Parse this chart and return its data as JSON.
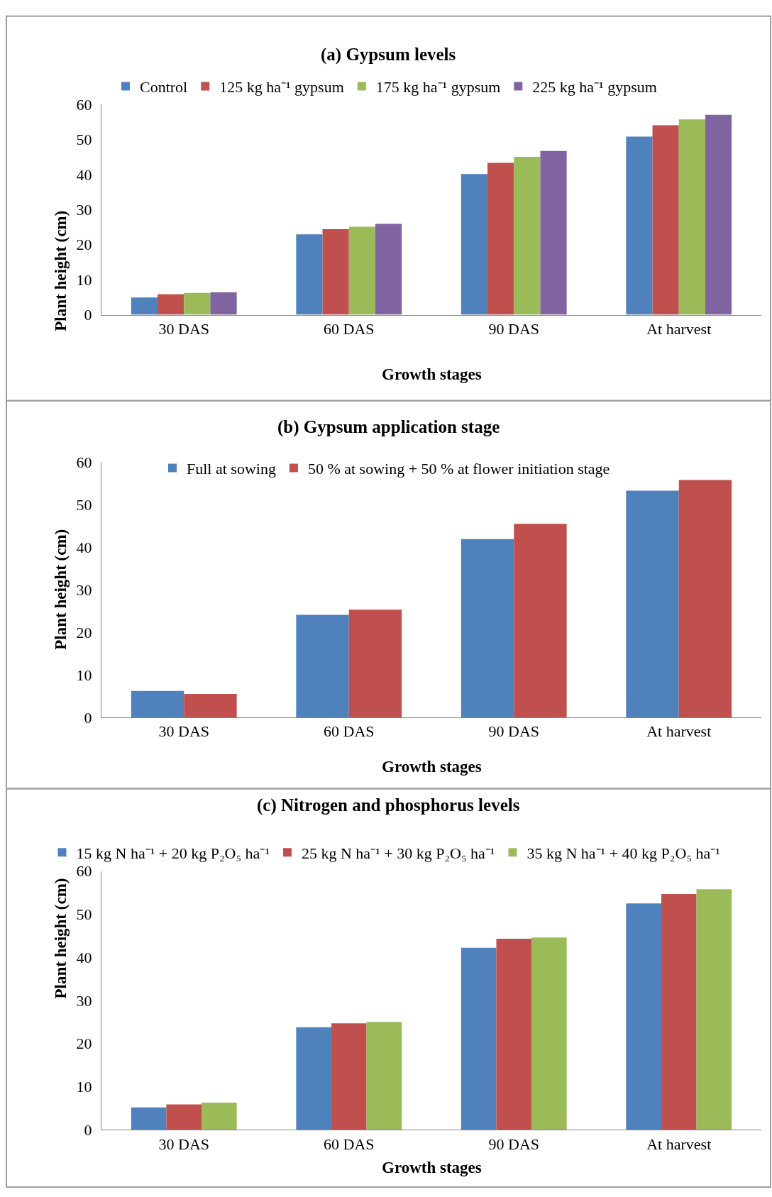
{
  "chart_data": [
    {
      "type": "bar",
      "title": "(a) Gypsum levels",
      "xlabel": "Growth stages",
      "ylabel": "Plant height (cm)",
      "categories": [
        "30 DAS",
        "60 DAS",
        "90 DAS",
        "At harvest"
      ],
      "series": [
        {
          "name": "Control",
          "color": "#4f81bd",
          "values": [
            4.9,
            22.9,
            40.1,
            50.8
          ]
        },
        {
          "name": "125 kg ha⁻¹ gypsum",
          "color": "#c0504d",
          "values": [
            5.8,
            24.4,
            43.3,
            54.0
          ]
        },
        {
          "name": "175 kg ha⁻¹ gypsum",
          "color": "#9bbb59",
          "values": [
            6.2,
            25.1,
            45.0,
            55.7
          ]
        },
        {
          "name": "225 kg ha⁻¹ gypsum",
          "color": "#8064a2",
          "values": [
            6.4,
            25.9,
            46.7,
            57.0
          ]
        }
      ],
      "ylim": [
        0,
        60
      ],
      "yticks": [
        0,
        10,
        20,
        30,
        40,
        50,
        60
      ],
      "grid": false,
      "legend": "top"
    },
    {
      "type": "bar",
      "title": "(b) Gypsum application stage",
      "xlabel": "Growth stages",
      "ylabel": "Plant height (cm)",
      "categories": [
        "30 DAS",
        "60 DAS",
        "90 DAS",
        "At harvest"
      ],
      "series": [
        {
          "name": "Full at sowing",
          "color": "#4f81bd",
          "values": [
            6.2,
            24.1,
            41.9,
            53.3
          ]
        },
        {
          "name": "50 % at sowing + 50 % at flower initiation stage",
          "color": "#c0504d",
          "values": [
            5.5,
            25.3,
            45.5,
            55.8
          ]
        }
      ],
      "ylim": [
        0,
        60
      ],
      "yticks": [
        0,
        10,
        20,
        30,
        40,
        50,
        60
      ],
      "grid": false,
      "legend": "top"
    },
    {
      "type": "bar",
      "title": "(c) Nitrogen and phosphorus levels",
      "xlabel": "Growth stages",
      "ylabel": "Plant height (cm)",
      "categories": [
        "30 DAS",
        "60 DAS",
        "90 DAS",
        "At harvest"
      ],
      "series": [
        {
          "name": "15 kg N ha⁻¹ + 20 kg P₂O₅ ha⁻¹",
          "color": "#4f81bd",
          "values": [
            5.2,
            23.8,
            42.2,
            52.5
          ]
        },
        {
          "name": "25 kg N ha⁻¹ + 30 kg P₂O₅ ha⁻¹",
          "color": "#c0504d",
          "values": [
            5.9,
            24.7,
            44.3,
            54.7
          ]
        },
        {
          "name": "35 kg N ha⁻¹ + 40 kg P₂O₅ ha⁻¹",
          "color": "#9bbb59",
          "values": [
            6.3,
            25.0,
            44.6,
            55.8
          ]
        }
      ],
      "ylim": [
        0,
        60
      ],
      "yticks": [
        0,
        10,
        20,
        30,
        40,
        50,
        60
      ],
      "grid": false,
      "legend": "top"
    }
  ]
}
